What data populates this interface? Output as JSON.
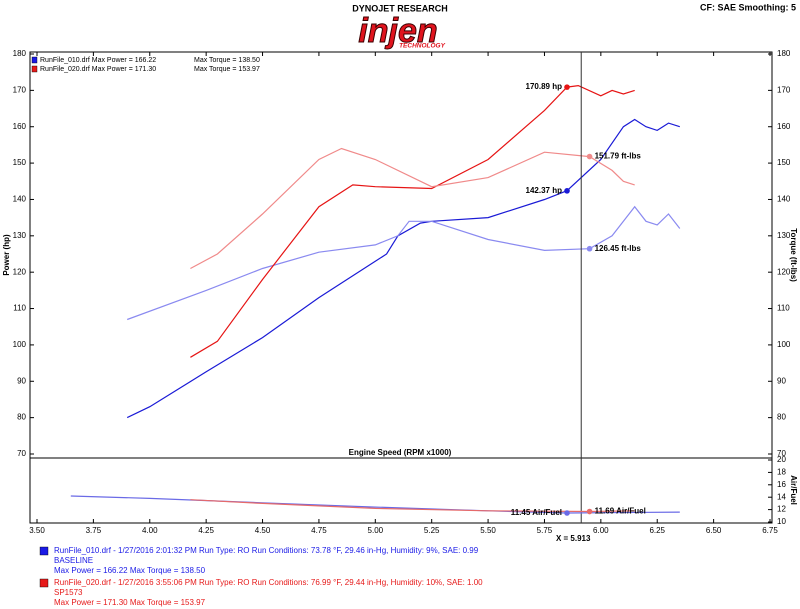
{
  "header": {
    "brand": "DYNOJET RESEARCH",
    "logo": "injen",
    "logo_sub": "TECHNOLOGY",
    "settings": "CF: SAE  Smoothing: 5"
  },
  "chart_data": [
    {
      "type": "line",
      "x_label": "Engine Speed (RPM x1000)",
      "y_label": "Power (hp)",
      "y2_label": "Torque (ft-lbs)",
      "xlim": [
        3.5,
        6.75
      ],
      "ylim": [
        70,
        180
      ],
      "yticks": [
        70,
        80,
        90,
        100,
        110,
        120,
        130,
        140,
        150,
        160,
        170,
        180
      ],
      "y2lim": [
        70,
        180
      ],
      "y2ticks": [
        70,
        80,
        90,
        100,
        110,
        120,
        130,
        140,
        150,
        160,
        170,
        180
      ],
      "legend": [
        {
          "name": "RunFile_010.drf Max Power = 166.22",
          "extra": "Max Torque = 138.50",
          "color": "#1a1ae6"
        },
        {
          "name": "RunFile_020.drf Max Power = 171.30",
          "extra": "Max Torque = 153.97",
          "color": "#e61a1a"
        }
      ],
      "series": [
        {
          "color": "#1a1ad6",
          "x": [
            3.9,
            4.0,
            4.25,
            4.5,
            4.75,
            5.0,
            5.05,
            5.1,
            5.2,
            5.25,
            5.5,
            5.75,
            5.85,
            6.0,
            6.1,
            6.15,
            6.2,
            6.25,
            6.3,
            6.35
          ],
          "values": [
            80,
            83,
            92.6,
            102,
            113,
            123,
            125,
            130,
            133.5,
            134,
            135,
            140,
            142.4,
            151,
            160,
            162,
            160,
            159,
            161,
            160
          ]
        },
        {
          "color": "#8a8af0",
          "axis": "y2",
          "x": [
            3.9,
            4.25,
            4.5,
            4.75,
            5.0,
            5.1,
            5.15,
            5.25,
            5.5,
            5.75,
            5.95,
            6.05,
            6.15,
            6.2,
            6.25,
            6.3,
            6.35
          ],
          "values": [
            107,
            115,
            121,
            125.5,
            127.5,
            130,
            134,
            134,
            129,
            126,
            126.45,
            130,
            138,
            134,
            133,
            136,
            132
          ]
        },
        {
          "color": "#e61414",
          "x": [
            4.18,
            4.3,
            4.5,
            4.75,
            4.9,
            5.0,
            5.25,
            5.5,
            5.75,
            5.85,
            5.9,
            6.0,
            6.05,
            6.1,
            6.15
          ],
          "values": [
            96.6,
            101,
            118,
            138,
            144,
            143.5,
            143,
            151,
            164.5,
            170.89,
            171.3,
            168.5,
            170,
            169,
            170
          ]
        },
        {
          "color": "#f08a8a",
          "axis": "y2",
          "x": [
            4.18,
            4.3,
            4.5,
            4.75,
            4.85,
            5.0,
            5.25,
            5.5,
            5.75,
            5.95,
            6.05,
            6.1,
            6.15
          ],
          "values": [
            121,
            125,
            136,
            151,
            154,
            151,
            143.5,
            146,
            153,
            151.79,
            148,
            145,
            144
          ]
        }
      ],
      "annotations": [
        {
          "label": "170.89 hp",
          "x": 5.85,
          "value": 170.89,
          "color": "#e61414"
        },
        {
          "label": "151.79 ft-lbs",
          "x": 5.95,
          "value": 151.79,
          "color": "#f08a8a",
          "axis": "y2"
        },
        {
          "label": "142.37 hp",
          "x": 5.85,
          "value": 142.37,
          "color": "#1a1ad6"
        },
        {
          "label": "126.45 ft-lbs",
          "x": 5.95,
          "value": 126.45,
          "color": "#8a8af0",
          "axis": "y2"
        }
      ],
      "cursor": {
        "label": "X = 5.913",
        "value": 5.913
      }
    },
    {
      "type": "line",
      "y_label": "Air/Fuel",
      "xlim": [
        3.5,
        6.75
      ],
      "xticks": [
        {
          "value": 3.5,
          "label": "3.50"
        },
        {
          "value": 3.75,
          "label": "3.75"
        },
        {
          "value": 4.0,
          "label": "4.00"
        },
        {
          "value": 4.25,
          "label": "4.25"
        },
        {
          "value": 4.5,
          "label": "4.50"
        },
        {
          "value": 4.75,
          "label": "4.75"
        },
        {
          "value": 5.0,
          "label": "5.00"
        },
        {
          "value": 5.25,
          "label": "5.25"
        },
        {
          "value": 5.5,
          "label": "5.50"
        },
        {
          "value": 5.75,
          "label": "5.75"
        },
        {
          "value": 6.0,
          "label": "6.00"
        },
        {
          "value": 6.25,
          "label": "6.25"
        },
        {
          "value": 6.5,
          "label": "6.50"
        },
        {
          "value": 6.75,
          "label": "6.75"
        }
      ],
      "ylim": [
        10,
        20
      ],
      "yticks": [
        10,
        12,
        14,
        16,
        18,
        20
      ],
      "series": [
        {
          "color": "#6a6ae6",
          "x": [
            3.65,
            4.0,
            4.5,
            5.0,
            5.5,
            5.85,
            6.35
          ],
          "values": [
            14.2,
            13.8,
            13.1,
            12.4,
            11.8,
            11.45,
            11.6
          ]
        },
        {
          "color": "#e66a6a",
          "x": [
            4.18,
            4.5,
            5.0,
            5.5,
            5.95,
            6.15
          ],
          "values": [
            13.6,
            13.0,
            12.2,
            11.8,
            11.69,
            11.8
          ]
        }
      ],
      "annotations": [
        {
          "label": "11.45 Air/Fuel",
          "x": 5.85,
          "value": 11.45,
          "color": "#6a6ae6"
        },
        {
          "label": "11.69 Air/Fuel",
          "x": 5.95,
          "value": 11.69,
          "color": "#e66a6a"
        }
      ]
    }
  ],
  "footer": {
    "runs": [
      {
        "line1": "RunFile_010.drf - 1/27/2016 2:01:32 PM  Run Type: RO  Run Conditions: 73.78 °F, 29.46 in-Hg,  Humidity:  9%, SAE: 0.99",
        "line2": "BASELINE",
        "line3": "Max Power = 166.22  Max Torque = 138.50",
        "color": "#1a1ae6"
      },
      {
        "line1": "RunFile_020.drf - 1/27/2016 3:55:06 PM  Run Type: RO  Run Conditions: 76.99 °F, 29.44 in-Hg,  Humidity:  10%, SAE: 1.00",
        "line2": "SP1573",
        "line3": "Max Power = 171.30  Max Torque = 153.97",
        "color": "#e61a1a"
      }
    ]
  }
}
